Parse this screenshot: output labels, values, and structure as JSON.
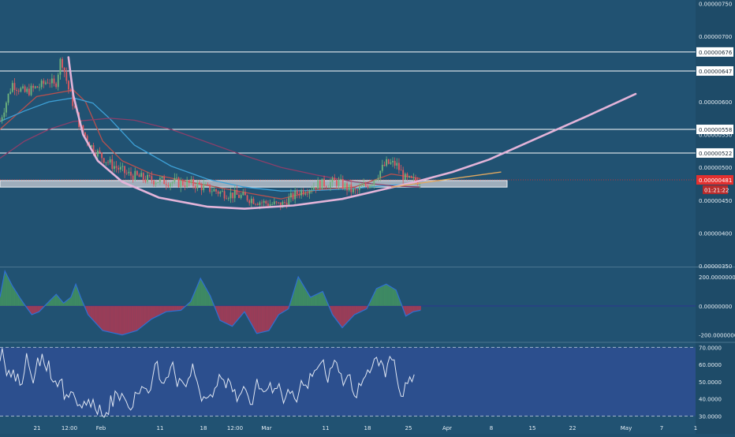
{
  "colors": {
    "background": "#215272",
    "axis_panel": "#1e4b68",
    "separator": "#4a7590",
    "label_text": "#ffffff",
    "axis_text": "#e6eef4",
    "candle_up": "#6fb57c",
    "candle_down": "#e0595f",
    "ma_fast": "#b7504e",
    "ma_medium": "#3da0d6",
    "ma_slow": "#8a3f6a",
    "cup_curve": "#e3b4d9",
    "trend_line": "#e0a860",
    "support_zone": "#c9cdd6",
    "price_line": "#c23234",
    "price_badge": "#e3302f",
    "countdown_badge": "#b82a2a",
    "macd_pos": "#3e8a63",
    "macd_neg": "#9a3d58",
    "macd_line": "#2f6fd3",
    "rsi_band": "#2e4f93",
    "rsi_line": "#dfe6f2",
    "rsi_bound": "#9fb3cc"
  },
  "chart_data": [
    {
      "type": "candlestick",
      "x_axis": {
        "ticks": [
          "21",
          "12:00",
          "Feb",
          "11",
          "18",
          "12:00",
          "Mar",
          "11",
          "18",
          "25",
          "Apr",
          "8",
          "15",
          "22",
          "May",
          "7",
          "1"
        ]
      },
      "y_axis": {
        "range": [
          3.5e-06,
          7.504e-06
        ],
        "ticks": [
          "0.00000750",
          "0.00000700",
          "0.00000600",
          "0.00000550",
          "0.00000500",
          "0.00000450",
          "0.00000400",
          "0.00000350"
        ]
      },
      "price_path": [
        {
          "x": 0.0,
          "y": 5.71e-06
        },
        {
          "x": 0.05,
          "y": 6.28e-06
        },
        {
          "x": 0.1,
          "y": 6.14e-06
        },
        {
          "x": 0.17,
          "y": 6.25e-06
        },
        {
          "x": 0.2,
          "y": 6.34e-06
        },
        {
          "x": 0.225,
          "y": 6.22e-06
        },
        {
          "x": 0.25,
          "y": 6.68e-06
        },
        {
          "x": 0.28,
          "y": 6.2e-06
        },
        {
          "x": 0.33,
          "y": 5.6e-06
        },
        {
          "x": 0.38,
          "y": 5.28e-06
        },
        {
          "x": 0.45,
          "y": 5.06e-06
        },
        {
          "x": 0.52,
          "y": 4.9e-06
        },
        {
          "x": 0.6,
          "y": 4.82e-06
        },
        {
          "x": 0.7,
          "y": 4.78e-06
        },
        {
          "x": 0.8,
          "y": 4.74e-06
        },
        {
          "x": 0.9,
          "y": 4.62e-06
        },
        {
          "x": 1.0,
          "y": 4.55e-06
        },
        {
          "x": 1.08,
          "y": 4.46e-06
        },
        {
          "x": 1.15,
          "y": 4.42e-06
        },
        {
          "x": 1.22,
          "y": 4.62e-06
        },
        {
          "x": 1.3,
          "y": 4.74e-06
        },
        {
          "x": 1.38,
          "y": 4.78e-06
        },
        {
          "x": 1.45,
          "y": 4.62e-06
        },
        {
          "x": 1.52,
          "y": 4.78e-06
        },
        {
          "x": 1.58,
          "y": 5.06e-06
        },
        {
          "x": 1.62,
          "y": 5.05e-06
        },
        {
          "x": 1.66,
          "y": 4.81e-06
        },
        {
          "x": 1.69,
          "y": 4.79e-06
        },
        {
          "x": 1.72,
          "y": 4.81e-06
        }
      ],
      "moving_averages": [
        {
          "points": [
            [
              0.0,
              5.58e-06
            ],
            [
              0.15,
              6.08e-06
            ],
            [
              0.3,
              6.18e-06
            ],
            [
              0.35,
              6e-06
            ],
            [
              0.42,
              5.4e-06
            ],
            [
              0.5,
              5.1e-06
            ],
            [
              0.62,
              4.9e-06
            ],
            [
              0.8,
              4.76e-06
            ],
            [
              1.0,
              4.62e-06
            ],
            [
              1.15,
              4.52e-06
            ],
            [
              1.3,
              4.66e-06
            ],
            [
              1.45,
              4.7e-06
            ],
            [
              1.6,
              4.9e-06
            ],
            [
              1.72,
              4.83e-06
            ]
          ]
        },
        {
          "points": [
            [
              0.0,
              5.7e-06
            ],
            [
              0.1,
              5.86e-06
            ],
            [
              0.2,
              6e-06
            ],
            [
              0.3,
              6.06e-06
            ],
            [
              0.38,
              5.98e-06
            ],
            [
              0.45,
              5.74e-06
            ],
            [
              0.55,
              5.34e-06
            ],
            [
              0.7,
              5.02e-06
            ],
            [
              0.85,
              4.82e-06
            ],
            [
              1.0,
              4.7e-06
            ],
            [
              1.15,
              4.64e-06
            ],
            [
              1.3,
              4.65e-06
            ],
            [
              1.45,
              4.68e-06
            ],
            [
              1.6,
              4.73e-06
            ],
            [
              1.72,
              4.75e-06
            ]
          ]
        },
        {
          "points": [
            [
              0.0,
              5.14e-06
            ],
            [
              0.1,
              5.4e-06
            ],
            [
              0.2,
              5.58e-06
            ],
            [
              0.3,
              5.7e-06
            ],
            [
              0.45,
              5.75e-06
            ],
            [
              0.55,
              5.72e-06
            ],
            [
              0.7,
              5.58e-06
            ],
            [
              0.85,
              5.38e-06
            ],
            [
              1.0,
              5.18e-06
            ],
            [
              1.15,
              5e-06
            ],
            [
              1.3,
              4.88e-06
            ],
            [
              1.45,
              4.78e-06
            ],
            [
              1.6,
              4.72e-06
            ],
            [
              1.72,
              4.7e-06
            ]
          ]
        }
      ],
      "horizontal_levels": [
        {
          "value": 6.76e-06,
          "label": "0.00000676"
        },
        {
          "value": 6.47e-06,
          "label": "0.00000647"
        },
        {
          "value": 5.58e-06,
          "label": "0.00000558"
        },
        {
          "value": 5.22e-06,
          "label": "0.00000522"
        }
      ],
      "support_zone": [
        4.7e-06,
        4.8e-06
      ],
      "cup_curve": [
        [
          0.28,
          6.68e-06
        ],
        [
          0.3,
          6.1e-06
        ],
        [
          0.34,
          5.5e-06
        ],
        [
          0.4,
          5.1e-06
        ],
        [
          0.5,
          4.78e-06
        ],
        [
          0.65,
          4.54e-06
        ],
        [
          0.85,
          4.4e-06
        ],
        [
          1.0,
          4.37e-06
        ],
        [
          1.2,
          4.42e-06
        ],
        [
          1.4,
          4.52e-06
        ],
        [
          1.55,
          4.65e-06
        ],
        [
          1.7,
          4.78e-06
        ],
        [
          1.85,
          4.93e-06
        ],
        [
          2.0,
          5.12e-06
        ],
        [
          2.2,
          5.45e-06
        ],
        [
          2.4,
          5.78e-06
        ],
        [
          2.6,
          6.12e-06
        ]
      ],
      "trend_line": [
        [
          1.6,
          4.7e-06
        ],
        [
          2.05,
          4.93e-06
        ]
      ],
      "last_price": {
        "value": 4.81e-06,
        "label": "0.00000481",
        "countdown": "01:21:22"
      }
    },
    {
      "type": "histogram",
      "y_axis": {
        "range": [
          -240,
          260
        ],
        "ticks": [
          "200.00000000",
          "0.00000000",
          "-200.00000000"
        ]
      },
      "series": [
        {
          "type": "area",
          "points": [
            [
              0.0,
              60
            ],
            [
              0.02,
              240
            ],
            [
              0.05,
              140
            ],
            [
              0.08,
              60
            ],
            [
              0.1,
              10
            ],
            [
              0.13,
              -60
            ],
            [
              0.16,
              -40
            ],
            [
              0.2,
              30
            ],
            [
              0.23,
              80
            ],
            [
              0.26,
              20
            ],
            [
              0.29,
              60
            ],
            [
              0.31,
              150
            ],
            [
              0.33,
              60
            ],
            [
              0.36,
              -60
            ],
            [
              0.42,
              -170
            ],
            [
              0.5,
              -200
            ],
            [
              0.56,
              -170
            ],
            [
              0.62,
              -90
            ],
            [
              0.68,
              -40
            ],
            [
              0.74,
              -30
            ],
            [
              0.78,
              30
            ],
            [
              0.82,
              190
            ],
            [
              0.86,
              70
            ],
            [
              0.9,
              -100
            ],
            [
              0.95,
              -140
            ],
            [
              1.0,
              -40
            ],
            [
              1.05,
              -190
            ],
            [
              1.1,
              -170
            ],
            [
              1.14,
              -60
            ],
            [
              1.18,
              -20
            ],
            [
              1.22,
              200
            ],
            [
              1.27,
              60
            ],
            [
              1.32,
              100
            ],
            [
              1.36,
              -60
            ],
            [
              1.4,
              -150
            ],
            [
              1.45,
              -60
            ],
            [
              1.5,
              -20
            ],
            [
              1.54,
              120
            ],
            [
              1.58,
              150
            ],
            [
              1.62,
              110
            ],
            [
              1.66,
              -70
            ],
            [
              1.69,
              -40
            ],
            [
              1.72,
              -30
            ]
          ]
        }
      ]
    },
    {
      "type": "line",
      "y_axis": {
        "range": [
          27,
          72
        ],
        "ticks": [
          "70.0000",
          "60.0000",
          "50.0000",
          "40.0000",
          "30.0000"
        ]
      },
      "bounds": [
        70,
        30
      ],
      "series": [
        {
          "values": [
            62.0,
            69.5,
            61.5,
            53.6,
            56.6,
            52.7,
            57.0,
            50.2,
            54.7,
            48.0,
            48.7,
            55.8,
            66.6,
            59.5,
            54.2,
            49.1,
            55.8,
            64.0,
            59.1,
            66.2,
            60.2,
            56.3,
            62.3,
            51.8,
            49.8,
            50.5,
            47.1,
            50.6,
            51.5,
            39.8,
            42.5,
            40.9,
            44.2,
            43.7,
            40.2,
            36.0,
            36.7,
            34.7,
            38.6,
            36.3,
            39.7,
            35.2,
            39.7,
            34.2,
            31.0,
            36.6,
            30.5,
            29.3,
            32.1,
            30.9,
            42.0,
            35.5,
            44.6,
            42.9,
            39.1,
            43.2,
            40.9,
            38.5,
            35.1,
            33.5,
            35.3,
            43.9,
            43.1,
            43.1,
            47.2,
            46.4,
            45.9,
            43.4,
            45.3,
            53.1,
            60.3,
            61.8,
            51.5,
            49.4,
            49.1,
            52.2,
            52.8,
            58.4,
            61.4,
            54.2,
            47.0,
            51.9,
            50.6,
            48.7,
            47.1,
            51.6,
            53.4,
            60.5,
            53.8,
            50.2,
            44.8,
            38.7,
            41.3,
            40.3,
            41.0,
            42.5,
            41.1,
            46.2,
            47.5,
            54.2,
            51.9,
            51.0,
            46.3,
            51.8,
            49.6,
            44.2,
            45.4,
            38.5,
            41.7,
            43.6,
            47.2,
            45.2,
            41.6,
            36.8,
            36.8,
            44.8,
            51.6,
            45.8,
            45.9,
            44.1,
            44.6,
            46.1,
            49.5,
            43.5,
            46.1,
            46.0,
            48.9,
            43.7,
            37.5,
            41.0,
            45.5,
            43.1,
            44.5,
            40.2,
            38.2,
            44.2,
            50.7,
            47.9,
            48.1,
            46.1,
            54.8,
            53.1,
            56.4,
            57.2,
            59.3,
            61.1,
            62.7,
            54.3,
            49.5,
            57.6,
            58.5,
            62.5,
            61.1,
            55.6,
            54.6,
            47.8,
            50.9,
            53.7,
            54.1,
            45.2,
            41.8,
            40.7,
            49.1,
            47.7,
            51.4,
            53.2,
            56.9,
            55.2,
            58.4,
            63.2,
            64.2,
            59.3,
            62.3,
            59.6,
            52.6,
            60.4,
            64.7,
            62.7,
            62.7,
            53.7,
            46.4,
            41.6,
            41.4,
            49.4,
            48.9,
            52.8,
            50.0,
            54.2
          ]
        }
      ]
    }
  ]
}
